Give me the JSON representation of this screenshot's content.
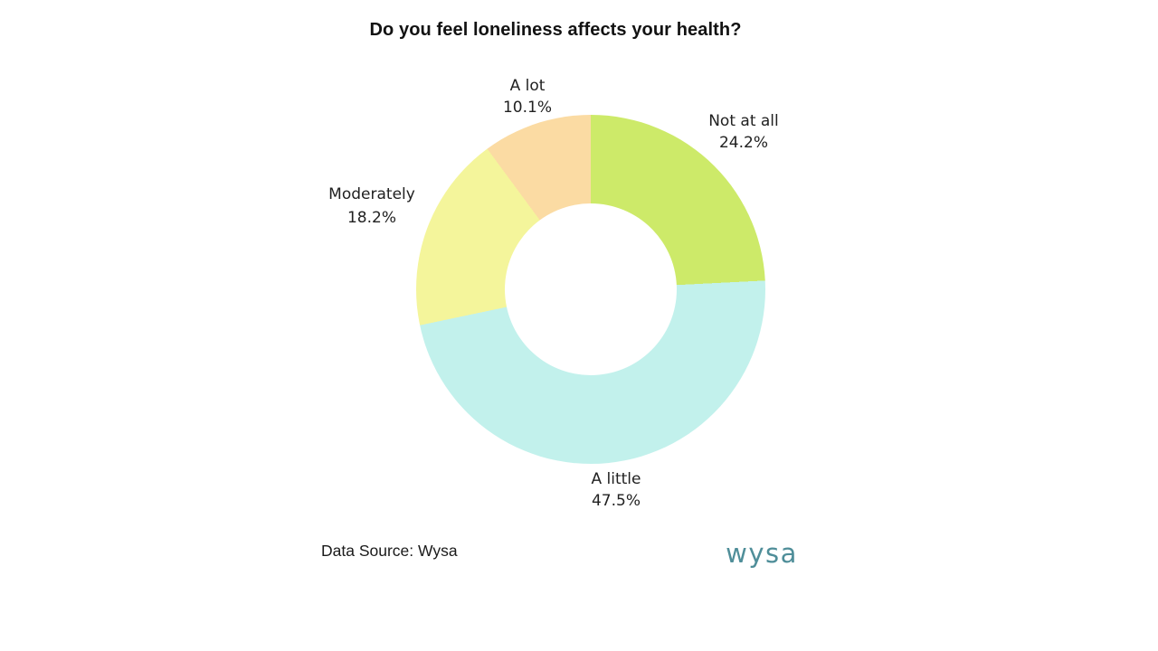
{
  "page": {
    "background": "#ffffff"
  },
  "title": "Do you feel loneliness affects your health?",
  "chart_data": {
    "type": "pie",
    "subtype": "donut",
    "title": "Do you feel loneliness affects your health?",
    "start_angle_deg": 0,
    "direction": "clockwise",
    "inner_radius_ratio": 0.49,
    "legend": "none",
    "label_style": "outside: category name above percent",
    "categories": [
      "Not at all",
      "A little",
      "Moderately",
      "A lot"
    ],
    "values": [
      24.2,
      47.5,
      18.2,
      10.1
    ],
    "slices": [
      {
        "label": "Not at all",
        "value": 24.2,
        "pct_label": "24.2%",
        "color": "#cdea69"
      },
      {
        "label": "A little",
        "value": 47.5,
        "pct_label": "47.5%",
        "color": "#c2f1ec"
      },
      {
        "label": "Moderately",
        "value": 18.2,
        "pct_label": "18.2%",
        "color": "#f4f59b"
      },
      {
        "label": "A lot",
        "value": 10.1,
        "pct_label": "10.1%",
        "color": "#fbdba3"
      }
    ]
  },
  "footer": {
    "data_source": "Data Source: Wysa",
    "logo_text": "wysa",
    "logo_color": "#4f8e99"
  }
}
